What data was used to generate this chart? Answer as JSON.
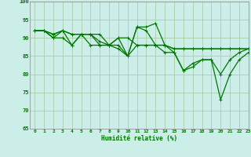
{
  "background_color": "#cceee8",
  "grid_color": "#aaccaa",
  "line_color": "#007700",
  "xlabel": "Humidité relative (%)",
  "ylim": [
    65,
    100
  ],
  "xlim": [
    -0.5,
    23
  ],
  "yticks": [
    65,
    70,
    75,
    80,
    85,
    90,
    95,
    100
  ],
  "xticks": [
    0,
    1,
    2,
    3,
    4,
    5,
    6,
    7,
    8,
    9,
    10,
    11,
    12,
    13,
    14,
    15,
    16,
    17,
    18,
    19,
    20,
    21,
    22,
    23
  ],
  "series1": [
    92,
    92,
    90,
    92,
    88,
    91,
    91,
    88,
    88,
    88,
    85,
    93,
    93,
    94,
    88,
    86,
    81,
    82,
    84,
    84,
    73,
    80,
    84,
    86
  ],
  "series2": [
    92,
    92,
    90,
    90,
    88,
    91,
    88,
    88,
    88,
    87,
    85,
    93,
    92,
    88,
    86,
    86,
    81,
    83,
    84,
    84,
    80,
    84,
    86,
    87
  ],
  "series3": [
    92,
    92,
    91,
    92,
    91,
    91,
    91,
    89,
    88,
    90,
    90,
    88,
    88,
    88,
    88,
    87,
    87,
    87,
    87,
    87,
    87,
    87,
    87,
    87
  ],
  "series4": [
    92,
    92,
    91,
    92,
    91,
    91,
    91,
    91,
    88,
    90,
    85,
    88,
    88,
    88,
    88,
    87,
    87,
    87,
    87,
    87,
    87,
    87,
    87,
    87
  ]
}
